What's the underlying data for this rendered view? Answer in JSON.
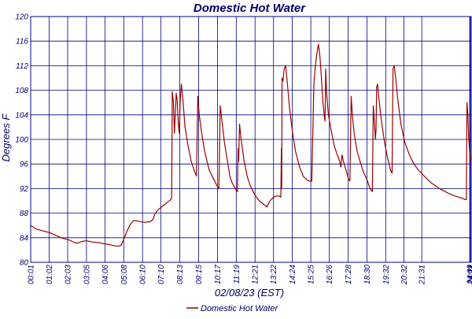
{
  "chart_data": {
    "type": "line",
    "title": "Domestic Hot Water",
    "xlabel": "02/08/23 (EST)",
    "ylabel": "Degrees F",
    "ylim": [
      80,
      120
    ],
    "yticks": [
      80,
      84,
      88,
      92,
      96,
      100,
      104,
      108,
      112,
      116,
      120
    ],
    "ytick_labels": [
      "80",
      "84",
      "88",
      "92",
      "96",
      "100",
      "104",
      "108",
      "112",
      "116",
      "120"
    ],
    "xlim": [
      1,
      1454
    ],
    "xticks": [
      1,
      62,
      123,
      185,
      246,
      308,
      370,
      430,
      493,
      555,
      617,
      679,
      741,
      802,
      864,
      925,
      986,
      1048,
      1110,
      1172,
      1232,
      1291,
      1449,
      1451,
      1454
    ],
    "xtick_labels": [
      "00:01",
      "01:02",
      "02:03",
      "03:05",
      "04:06",
      "05:08",
      "06:10",
      "07:10",
      "08:13",
      "09:15",
      "10:17",
      "11:19",
      "12:21",
      "13:22",
      "14:24",
      "15:25",
      "16:26",
      "17:28",
      "18:30",
      "19:32",
      "20:32",
      "21:31",
      "24:09",
      "24:11",
      "24:14"
    ],
    "grid": true,
    "line_color": "#990000",
    "grid_color": "#000080",
    "legend_position": "bottom-center",
    "series": [
      {
        "name": "Domestic Hot Water",
        "points": [
          [
            1,
            86.0
          ],
          [
            10,
            85.7
          ],
          [
            20,
            85.4
          ],
          [
            35,
            85.2
          ],
          [
            50,
            85.0
          ],
          [
            65,
            84.8
          ],
          [
            80,
            84.5
          ],
          [
            100,
            84.0
          ],
          [
            115,
            83.8
          ],
          [
            130,
            83.6
          ],
          [
            145,
            83.2
          ],
          [
            155,
            83.1
          ],
          [
            170,
            83.4
          ],
          [
            185,
            83.5
          ],
          [
            205,
            83.3
          ],
          [
            225,
            83.2
          ],
          [
            245,
            83.0
          ],
          [
            260,
            82.9
          ],
          [
            275,
            82.7
          ],
          [
            290,
            82.6
          ],
          [
            300,
            82.8
          ],
          [
            310,
            84.0
          ],
          [
            320,
            85.2
          ],
          [
            330,
            86.2
          ],
          [
            340,
            86.8
          ],
          [
            355,
            86.7
          ],
          [
            375,
            86.5
          ],
          [
            395,
            86.6
          ],
          [
            405,
            87.0
          ],
          [
            410,
            87.8
          ],
          [
            420,
            88.5
          ],
          [
            440,
            89.3
          ],
          [
            455,
            89.9
          ],
          [
            463,
            90.2
          ],
          [
            466,
            90.5
          ],
          [
            468,
            107.8
          ],
          [
            472,
            106.0
          ],
          [
            475,
            101.0
          ],
          [
            478,
            104.0
          ],
          [
            481,
            107.5
          ],
          [
            484,
            106.5
          ],
          [
            488,
            102.5
          ],
          [
            491,
            101.0
          ],
          [
            494,
            106.0
          ],
          [
            498,
            109.0
          ],
          [
            503,
            106.5
          ],
          [
            510,
            102.0
          ],
          [
            520,
            99.0
          ],
          [
            530,
            96.5
          ],
          [
            540,
            95.0
          ],
          [
            548,
            94.0
          ],
          [
            552,
            107.0
          ],
          [
            557,
            104.0
          ],
          [
            565,
            101.0
          ],
          [
            575,
            98.0
          ],
          [
            590,
            95.0
          ],
          [
            605,
            93.5
          ],
          [
            615,
            92.5
          ],
          [
            622,
            92.0
          ],
          [
            626,
            105.5
          ],
          [
            632,
            103.0
          ],
          [
            640,
            99.5
          ],
          [
            650,
            96.5
          ],
          [
            658,
            94.0
          ],
          [
            665,
            93.0
          ],
          [
            675,
            92.0
          ],
          [
            683,
            91.5
          ],
          [
            685,
            98.5
          ],
          [
            687,
            96.5
          ],
          [
            690,
            102.5
          ],
          [
            695,
            100.0
          ],
          [
            705,
            96.5
          ],
          [
            715,
            94.0
          ],
          [
            725,
            92.5
          ],
          [
            740,
            91.0
          ],
          [
            755,
            90.0
          ],
          [
            768,
            89.5
          ],
          [
            775,
            89.2
          ],
          [
            780,
            89.0
          ],
          [
            790,
            90.0
          ],
          [
            800,
            90.5
          ],
          [
            810,
            90.8
          ],
          [
            820,
            90.8
          ],
          [
            826,
            90.6
          ],
          [
            828,
            98.5
          ],
          [
            829,
            92.0
          ],
          [
            830,
            110.0
          ],
          [
            833,
            109.5
          ],
          [
            837,
            111.5
          ],
          [
            842,
            112.0
          ],
          [
            848,
            109.0
          ],
          [
            855,
            105.0
          ],
          [
            865,
            101.0
          ],
          [
            875,
            98.0
          ],
          [
            888,
            95.5
          ],
          [
            900,
            94.0
          ],
          [
            915,
            93.3
          ],
          [
            928,
            93.2
          ],
          [
            935,
            109.0
          ],
          [
            940,
            112.0
          ],
          [
            945,
            114.0
          ],
          [
            950,
            115.5
          ],
          [
            955,
            113.5
          ],
          [
            960,
            110.0
          ],
          [
            965,
            106.0
          ],
          [
            970,
            103.5
          ],
          [
            972,
            103.0
          ],
          [
            974,
            111.5
          ],
          [
            977,
            107.5
          ],
          [
            983,
            104.0
          ],
          [
            992,
            101.5
          ],
          [
            1002,
            99.0
          ],
          [
            1012,
            97.5
          ],
          [
            1020,
            96.5
          ],
          [
            1024,
            95.5
          ],
          [
            1028,
            97.5
          ],
          [
            1032,
            96.5
          ],
          [
            1038,
            95.5
          ],
          [
            1044,
            94.5
          ],
          [
            1050,
            93.5
          ],
          [
            1054,
            93.2
          ],
          [
            1058,
            107.0
          ],
          [
            1062,
            104.0
          ],
          [
            1068,
            101.0
          ],
          [
            1078,
            98.0
          ],
          [
            1090,
            96.0
          ],
          [
            1100,
            94.5
          ],
          [
            1110,
            93.5
          ],
          [
            1120,
            92.0
          ],
          [
            1128,
            91.5
          ],
          [
            1131,
            105.5
          ],
          [
            1135,
            102.5
          ],
          [
            1138,
            100.0
          ],
          [
            1140,
            101.5
          ],
          [
            1142,
            108.5
          ],
          [
            1145,
            109.0
          ],
          [
            1150,
            106.5
          ],
          [
            1158,
            103.0
          ],
          [
            1168,
            99.5
          ],
          [
            1178,
            97.0
          ],
          [
            1188,
            95.0
          ],
          [
            1193,
            94.5
          ],
          [
            1196,
            111.5
          ],
          [
            1200,
            112.0
          ],
          [
            1205,
            110.0
          ],
          [
            1212,
            106.5
          ],
          [
            1222,
            102.5
          ],
          [
            1235,
            99.5
          ],
          [
            1250,
            97.5
          ],
          [
            1265,
            96.0
          ],
          [
            1280,
            95.0
          ],
          [
            1300,
            94.0
          ],
          [
            1320,
            93.0
          ],
          [
            1340,
            92.3
          ],
          [
            1360,
            91.7
          ],
          [
            1380,
            91.2
          ],
          [
            1400,
            90.8
          ],
          [
            1420,
            90.5
          ],
          [
            1435,
            90.2
          ],
          [
            1438,
            90.2
          ],
          [
            1440,
            106.0
          ],
          [
            1443,
            104.0
          ],
          [
            1446,
            100.0
          ],
          [
            1449,
            98.0
          ],
          [
            1451,
            97.0
          ],
          [
            1454,
            96.5
          ]
        ]
      }
    ]
  }
}
